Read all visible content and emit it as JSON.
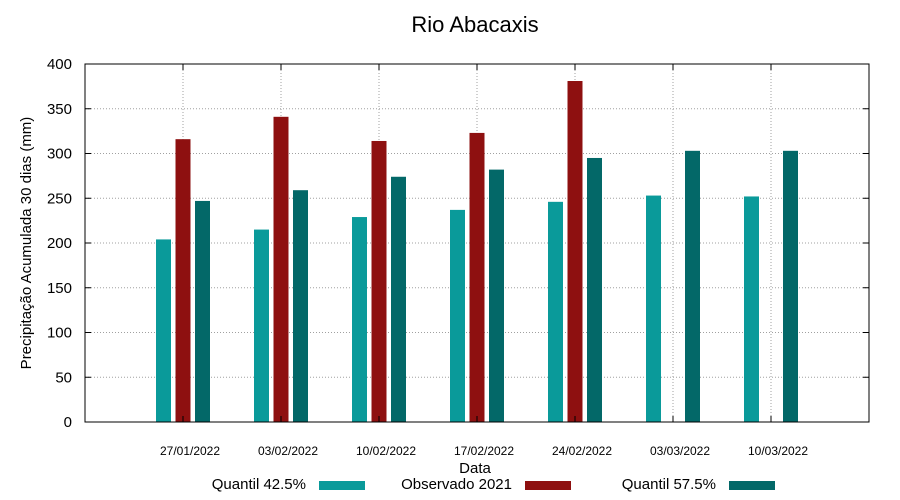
{
  "chart_data": {
    "type": "bar",
    "title": "Rio Abacaxis",
    "xlabel": "Data",
    "ylabel": "Precipitação Acumulada 30 dias (mm)",
    "ylim": [
      0,
      400
    ],
    "yticks": [
      0,
      50,
      100,
      150,
      200,
      250,
      300,
      350,
      400
    ],
    "grid": true,
    "legend_position": "bottom",
    "categories": [
      "27/01/2022",
      "03/02/2022",
      "10/02/2022",
      "17/02/2022",
      "24/02/2022",
      "03/03/2022",
      "10/03/2022"
    ],
    "series": [
      {
        "name": "Quantil 42.5%",
        "color": "#0a9a9a",
        "values": [
          204,
          215,
          229,
          237,
          246,
          253,
          252
        ]
      },
      {
        "name": "Observado 2021",
        "color": "#8e1010",
        "values": [
          316,
          341,
          314,
          323,
          381,
          null,
          null
        ]
      },
      {
        "name": "Quantil 57.5%",
        "color": "#036868",
        "values": [
          247,
          259,
          274,
          282,
          295,
          303,
          303
        ]
      }
    ]
  }
}
